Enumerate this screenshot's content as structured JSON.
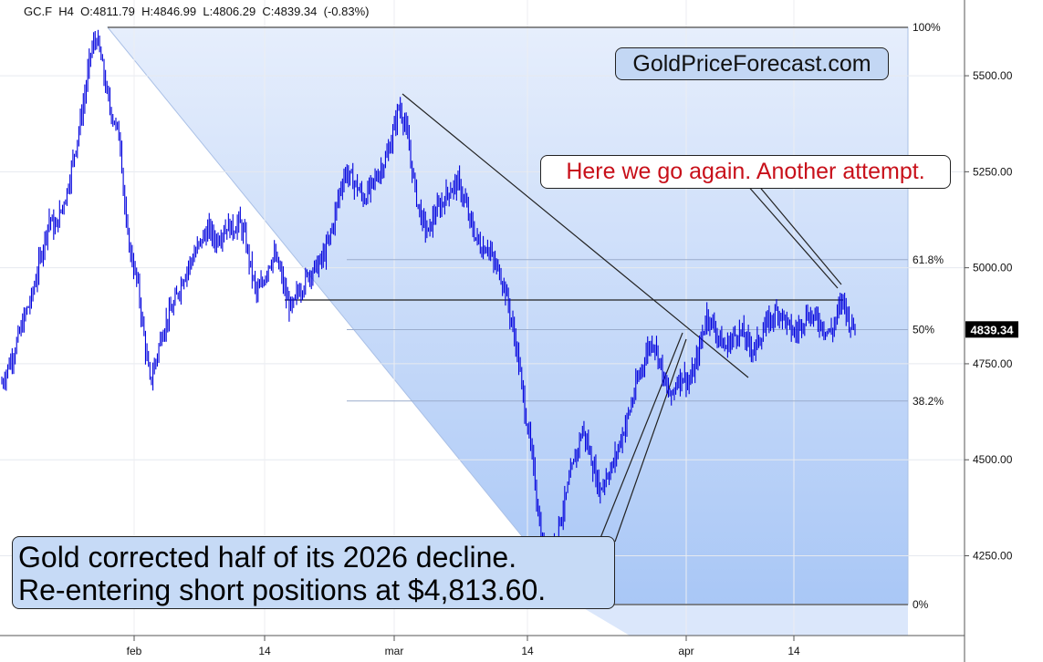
{
  "header": {
    "symbol": "GC.F",
    "timeframe": "H4",
    "ohlc": "O:4811.79  H:4846.99  L:4806.29  C:4839.34  (-0.83%)"
  },
  "annotations": {
    "brand": "GoldPriceForecast.com",
    "attempt": "Here we go again. Another attempt.",
    "summary_line1": "Gold corrected half of its 2026 decline.",
    "summary_line2": "Re-entering short positions at $4,813.60."
  },
  "colors": {
    "price": "#0000dd",
    "band_light": "#e6eefc",
    "band_dark": "#a9c7f6",
    "attempt_text": "#c8101a",
    "last_price_bg": "#000000"
  },
  "chart_data": {
    "type": "line",
    "title": "",
    "xlabel": "",
    "ylabel": "",
    "ylim": [
      4100,
      5640
    ],
    "x_tick_labels": [
      "feb",
      "14",
      "mar",
      "14",
      "apr",
      "14"
    ],
    "y_ticks": [
      4250,
      4500,
      4750,
      5000,
      5250,
      5500
    ],
    "y_tick_labels": [
      "4250.00",
      "4500.00",
      "4750.00",
      "5000.00",
      "5250.00",
      "5500.00"
    ],
    "last_price": 4839.34,
    "last_price_label": "4839.34",
    "fib_levels": [
      {
        "label": "100%",
        "value": 5626
      },
      {
        "label": "61.8%",
        "value": 5021
      },
      {
        "label": "50%",
        "value": 4839
      },
      {
        "label": "38.2%",
        "value": 4653
      },
      {
        "label": "0%",
        "value": 4123
      }
    ],
    "horizontal_line_level": 4880,
    "series": [
      {
        "values": [
          4700,
          4740,
          4780,
          4830,
          4880,
          4920,
          4990,
          5060,
          5130,
          5100,
          5150,
          5200,
          5280,
          5360,
          5450,
          5560,
          5600,
          5520,
          5430,
          5380,
          5330,
          5100,
          5020,
          4950,
          4820,
          4700,
          4760,
          4830,
          4870,
          4900,
          4950,
          4990,
          5020,
          5050,
          5080,
          5100,
          5070,
          5090,
          5110,
          5100,
          5120,
          5080,
          5000,
          4930,
          4960,
          5010,
          5030,
          4990,
          4920,
          4890,
          4940,
          4960,
          4990,
          5000,
          5020,
          5060,
          5120,
          5200,
          5250,
          5230,
          5210,
          5180,
          5200,
          5230,
          5260,
          5290,
          5350,
          5420,
          5380,
          5280,
          5180,
          5120,
          5090,
          5140,
          5160,
          5190,
          5210,
          5220,
          5180,
          5120,
          5080,
          5050,
          5060,
          5010,
          4990,
          4940,
          4860,
          4780,
          4660,
          4560,
          4440,
          4300,
          4230,
          4270,
          4330,
          4390,
          4460,
          4520,
          4580,
          4530,
          4470,
          4420,
          4460,
          4480,
          4530,
          4580,
          4630,
          4690,
          4740,
          4790,
          4810,
          4760,
          4690,
          4660,
          4710,
          4720,
          4700,
          4740,
          4810,
          4880,
          4850,
          4820,
          4790,
          4810,
          4830,
          4830,
          4800,
          4790,
          4820,
          4850,
          4870,
          4890,
          4870,
          4840,
          4830,
          4860,
          4880,
          4870,
          4860,
          4840,
          4830,
          4880,
          4920,
          4860,
          4839
        ]
      }
    ]
  }
}
